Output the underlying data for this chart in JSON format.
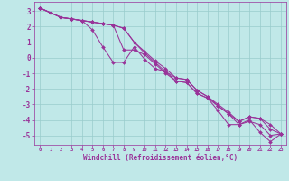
{
  "xlabel": "Windchill (Refroidissement éolien,°C)",
  "bg_color": "#c0e8e8",
  "line_color": "#993399",
  "grid_color": "#99cccc",
  "xlim": [
    -0.5,
    23.5
  ],
  "ylim": [
    -5.6,
    3.6
  ],
  "yticks": [
    3,
    2,
    1,
    0,
    -1,
    -2,
    -3,
    -4,
    -5
  ],
  "xticks": [
    0,
    1,
    2,
    3,
    4,
    5,
    6,
    7,
    8,
    9,
    10,
    11,
    12,
    13,
    14,
    15,
    16,
    17,
    18,
    19,
    20,
    21,
    22,
    23
  ],
  "lines": [
    [
      3.2,
      2.9,
      2.6,
      2.5,
      2.4,
      1.8,
      0.7,
      -0.3,
      -0.3,
      0.7,
      -0.1,
      -0.7,
      -0.9,
      -1.5,
      -1.6,
      -2.3,
      -2.6,
      -3.4,
      -4.3,
      -4.3,
      -4.0,
      -4.8,
      -5.4,
      -4.9
    ],
    [
      3.2,
      2.9,
      2.6,
      2.5,
      2.4,
      2.3,
      2.2,
      2.1,
      0.5,
      0.5,
      0.2,
      -0.4,
      -1.0,
      -1.5,
      -1.6,
      -2.3,
      -2.6,
      -3.1,
      -3.6,
      -4.3,
      -4.1,
      -4.3,
      -5.0,
      -4.9
    ],
    [
      3.2,
      2.9,
      2.6,
      2.5,
      2.4,
      2.3,
      2.2,
      2.1,
      1.9,
      1.0,
      0.3,
      -0.3,
      -0.9,
      -1.3,
      -1.4,
      -2.1,
      -2.5,
      -3.1,
      -3.6,
      -4.1,
      -3.8,
      -3.9,
      -4.6,
      -4.9
    ],
    [
      3.2,
      2.9,
      2.6,
      2.5,
      2.4,
      2.3,
      2.2,
      2.1,
      1.9,
      1.0,
      0.4,
      -0.2,
      -0.7,
      -1.3,
      -1.4,
      -2.1,
      -2.5,
      -3.0,
      -3.5,
      -4.1,
      -3.8,
      -3.9,
      -4.3,
      -4.9
    ]
  ]
}
